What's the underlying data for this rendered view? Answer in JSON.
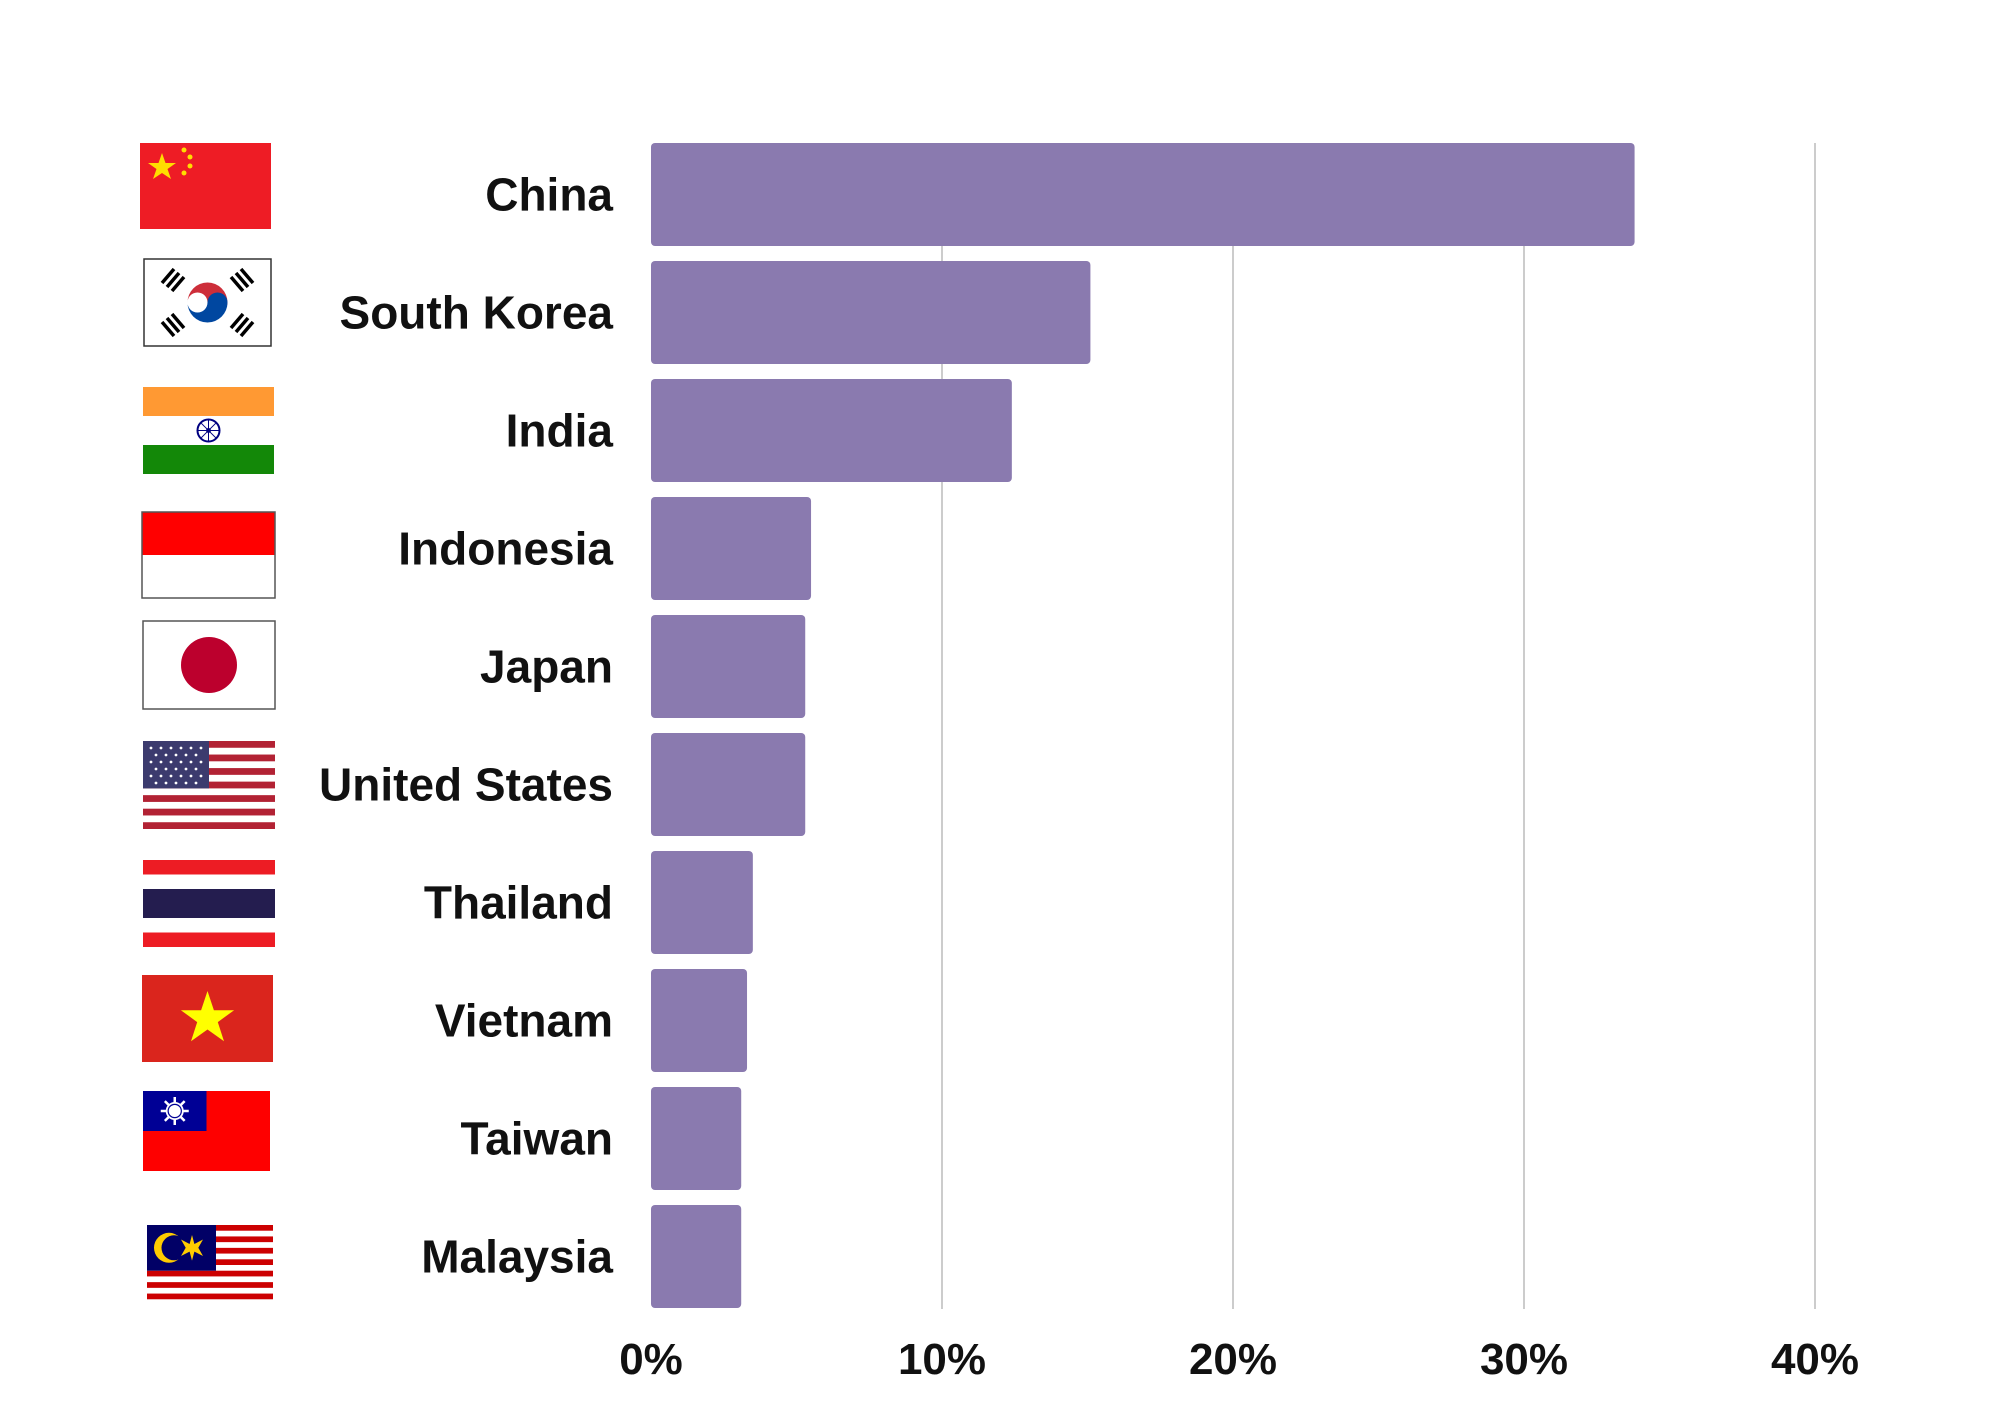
{
  "chart_data": {
    "type": "bar",
    "orientation": "horizontal",
    "categories": [
      "China",
      "South Korea",
      "India",
      "Indonesia",
      "Japan",
      "United States",
      "Thailand",
      "Vietnam",
      "Taiwan",
      "Malaysia"
    ],
    "values": [
      33.8,
      15.1,
      12.4,
      5.5,
      5.3,
      5.3,
      3.5,
      3.3,
      3.1,
      3.1
    ],
    "xlim": [
      0,
      40
    ],
    "ticks": [
      "0%",
      "10%",
      "20%",
      "30%",
      "40%"
    ],
    "tick_values": [
      0,
      10,
      20,
      30,
      40
    ],
    "grid": "vertical",
    "bar_color": "#8a7aaf",
    "flags": [
      "china-flag-icon",
      "south-korea-flag-icon",
      "india-flag-icon",
      "indonesia-flag-icon",
      "japan-flag-icon",
      "united-states-flag-icon",
      "thailand-flag-icon",
      "vietnam-flag-icon",
      "taiwan-flag-icon",
      "malaysia-flag-icon"
    ]
  }
}
